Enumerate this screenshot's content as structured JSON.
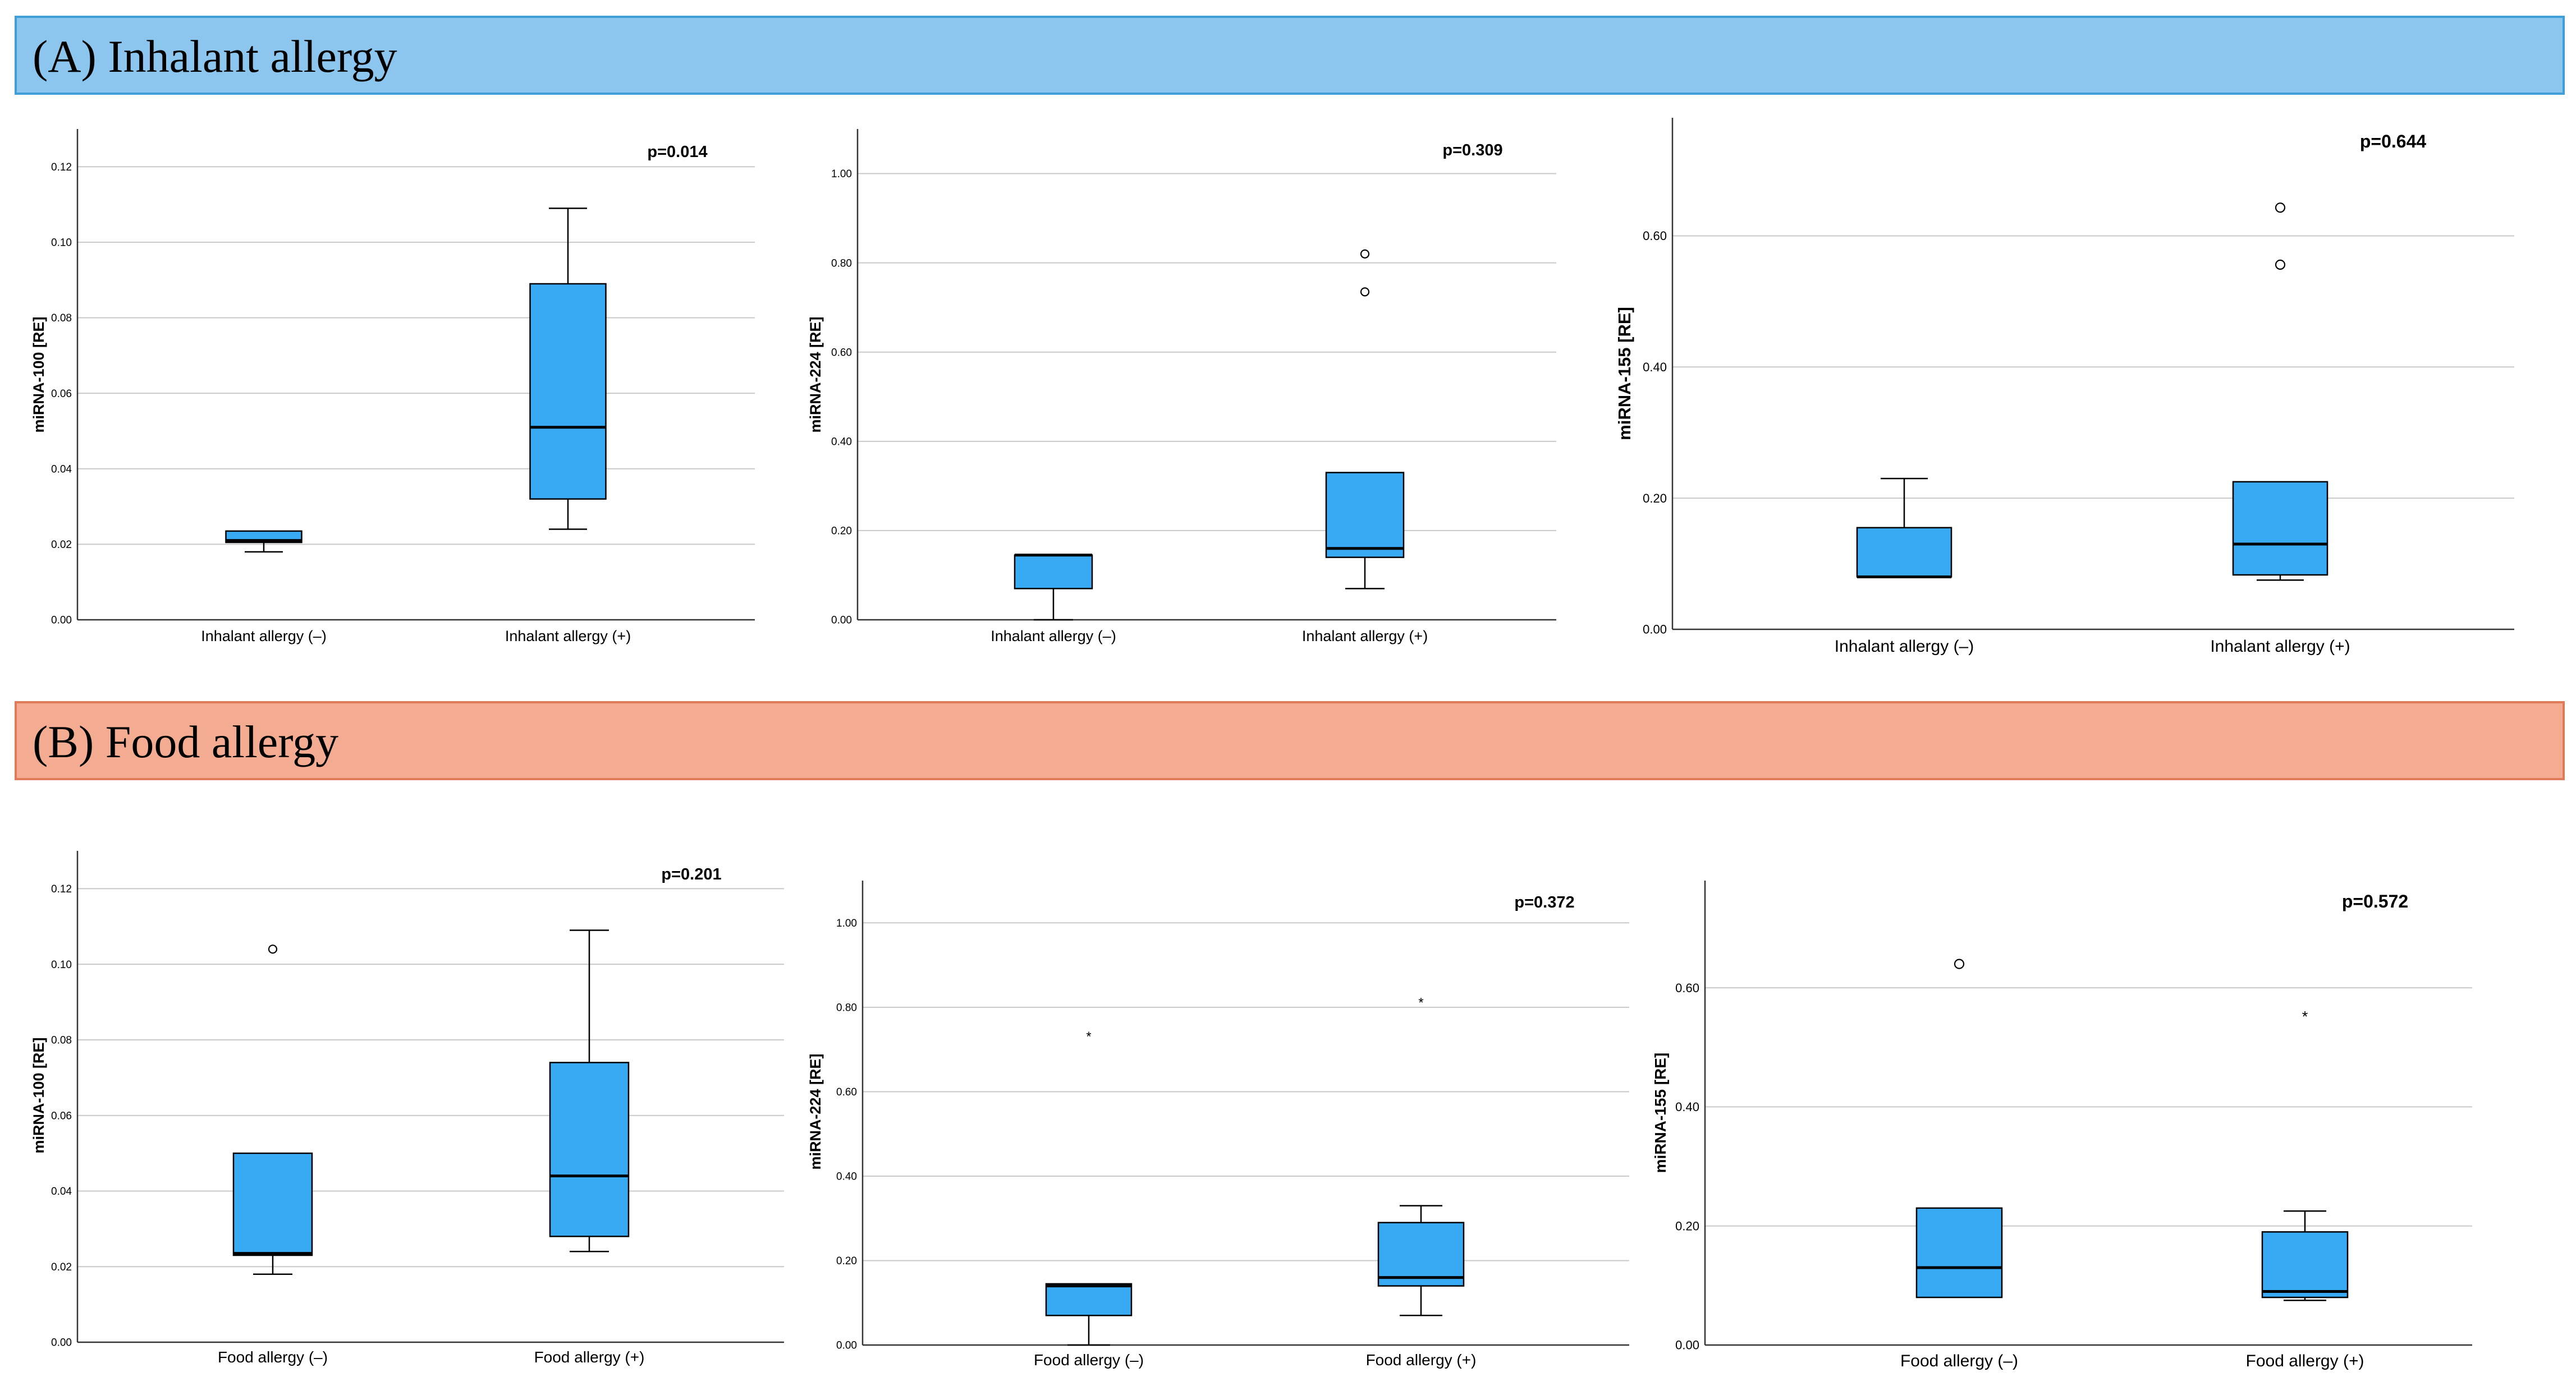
{
  "panels": [
    {
      "id": "A",
      "title": "(A) Inhalant allergy",
      "fill": "#8cc5ee",
      "border": "#3f9fd6"
    },
    {
      "id": "B",
      "title": "(B) Food allergy",
      "fill": "#f3ab92",
      "border": "#df7b58"
    }
  ],
  "colors": {
    "box_fill": "#38aaf3",
    "gridline": "#c8c8c8",
    "axis": "#333333"
  },
  "chart_data": [
    {
      "type": "boxplot",
      "panel": "A",
      "ylabel": "miRNA-100 [RE]",
      "pvalue": "p=0.014",
      "ylim": [
        0,
        0.13
      ],
      "yticks": [
        0,
        0.02,
        0.04,
        0.06,
        0.08,
        0.1,
        0.12
      ],
      "yticklabels": [
        "0.00",
        "0.02",
        "0.04",
        "0.06",
        "0.08",
        "0.10",
        "0.12"
      ],
      "categories": [
        "Inhalant allergy (–)",
        "Inhalant allergy (+)"
      ],
      "boxes": [
        {
          "whisker_low": 0.018,
          "q1": 0.0205,
          "median": 0.021,
          "q3": 0.0235,
          "whisker_high": 0.0235,
          "outliers": []
        },
        {
          "whisker_low": 0.024,
          "q1": 0.032,
          "median": 0.051,
          "q3": 0.089,
          "whisker_high": 0.109,
          "outliers": []
        }
      ]
    },
    {
      "type": "boxplot",
      "panel": "A",
      "ylabel": "miRNA-224 [RE]",
      "pvalue": "p=0.309",
      "ylim": [
        0,
        1.1
      ],
      "yticks": [
        0,
        0.2,
        0.4,
        0.6,
        0.8,
        1.0
      ],
      "yticklabels": [
        "0.00",
        "0.20",
        "0.40",
        "0.60",
        "0.80",
        "1.00"
      ],
      "categories": [
        "Inhalant allergy (–)",
        "Inhalant allergy (+)"
      ],
      "boxes": [
        {
          "whisker_low": 0.0,
          "q1": 0.07,
          "median": 0.145,
          "q3": 0.145,
          "whisker_high": 0.145,
          "outliers": []
        },
        {
          "whisker_low": 0.07,
          "q1": 0.14,
          "median": 0.16,
          "q3": 0.33,
          "whisker_high": 0.33,
          "outliers": [
            {
              "value": 0.82,
              "marker": "circle"
            },
            {
              "value": 0.735,
              "marker": "circle"
            }
          ]
        }
      ]
    },
    {
      "type": "boxplot",
      "panel": "A",
      "ylabel": "miRNA-155 [RE]",
      "pvalue": "p=0.644",
      "ylim": [
        0,
        0.78
      ],
      "yticks": [
        0,
        0.2,
        0.4,
        0.6
      ],
      "yticklabels": [
        "0.00",
        "0.20",
        "0.40",
        "0.60"
      ],
      "categories": [
        "Inhalant allergy (–)",
        "Inhalant allergy (+)"
      ],
      "boxes": [
        {
          "whisker_low": 0.08,
          "q1": 0.08,
          "median": 0.08,
          "q3": 0.155,
          "whisker_high": 0.23,
          "outliers": []
        },
        {
          "whisker_low": 0.075,
          "q1": 0.083,
          "median": 0.13,
          "q3": 0.225,
          "whisker_high": 0.225,
          "outliers": [
            {
              "value": 0.643,
              "marker": "circle"
            },
            {
              "value": 0.556,
              "marker": "circle"
            }
          ]
        }
      ]
    },
    {
      "type": "boxplot",
      "panel": "B",
      "ylabel": "miRNA-100 [RE]",
      "pvalue": "p=0.201",
      "ylim": [
        0,
        0.13
      ],
      "yticks": [
        0,
        0.02,
        0.04,
        0.06,
        0.08,
        0.1,
        0.12
      ],
      "yticklabels": [
        "0.00",
        "0.02",
        "0.04",
        "0.06",
        "0.08",
        "0.10",
        "0.12"
      ],
      "categories": [
        "Food allergy (–)",
        "Food allergy (+)"
      ],
      "boxes": [
        {
          "whisker_low": 0.018,
          "q1": 0.023,
          "median": 0.0235,
          "q3": 0.05,
          "whisker_high": 0.05,
          "outliers": [
            {
              "value": 0.104,
              "marker": "circle"
            }
          ]
        },
        {
          "whisker_low": 0.024,
          "q1": 0.028,
          "median": 0.044,
          "q3": 0.074,
          "whisker_high": 0.109,
          "outliers": []
        }
      ]
    },
    {
      "type": "boxplot",
      "panel": "B",
      "ylabel": "miRNA-224 [RE]",
      "pvalue": "p=0.372",
      "ylim": [
        0,
        1.1
      ],
      "yticks": [
        0,
        0.2,
        0.4,
        0.6,
        0.8,
        1.0
      ],
      "yticklabels": [
        "0.00",
        "0.20",
        "0.40",
        "0.60",
        "0.80",
        "1.00"
      ],
      "categories": [
        "Food allergy (–)",
        "Food allergy (+)"
      ],
      "boxes": [
        {
          "whisker_low": 0.0,
          "q1": 0.07,
          "median": 0.14,
          "q3": 0.145,
          "whisker_high": 0.145,
          "outliers": [
            {
              "value": 0.735,
              "marker": "star"
            }
          ]
        },
        {
          "whisker_low": 0.07,
          "q1": 0.14,
          "median": 0.16,
          "q3": 0.29,
          "whisker_high": 0.33,
          "outliers": [
            {
              "value": 0.815,
              "marker": "star"
            }
          ]
        }
      ]
    },
    {
      "type": "boxplot",
      "panel": "B",
      "ylabel": "miRNA-155 [RE]",
      "pvalue": "p=0.572",
      "ylim": [
        0,
        0.78
      ],
      "yticks": [
        0,
        0.2,
        0.4,
        0.6
      ],
      "yticklabels": [
        "0.00",
        "0.20",
        "0.40",
        "0.60"
      ],
      "categories": [
        "Food allergy (–)",
        "Food allergy (+)"
      ],
      "boxes": [
        {
          "whisker_low": 0.08,
          "q1": 0.08,
          "median": 0.13,
          "q3": 0.23,
          "whisker_high": 0.23,
          "outliers": [
            {
              "value": 0.64,
              "marker": "circle"
            }
          ]
        },
        {
          "whisker_low": 0.075,
          "q1": 0.08,
          "median": 0.09,
          "q3": 0.19,
          "whisker_high": 0.225,
          "outliers": [
            {
              "value": 0.555,
              "marker": "star"
            }
          ]
        }
      ]
    }
  ]
}
